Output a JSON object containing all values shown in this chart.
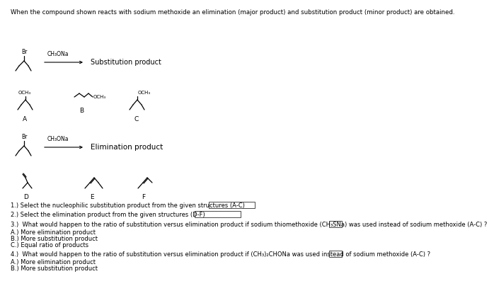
{
  "bg_color": "#ffffff",
  "title": "When the compound shown reacts with sodium methoxide an elimination (major product) and substitution product (minor product) are obtained.",
  "ch3ona": "CH₃ONa",
  "br": "Br",
  "och3": "OCH₃",
  "sub_label": "Substitution product",
  "elim_label": "Elimination product",
  "label_A": "A",
  "label_B": "B",
  "label_C": "C",
  "label_D": "D",
  "label_E": "E",
  "label_F": "F",
  "q1": "1.) Select the nucleophilic substitution product from the given structures (A-C)",
  "q2": "2.) Select the elimination product from the given structures (D-F)",
  "q3": "3.)  What would happen to the ratio of substitution versus elimination product if sodium thiomethoxide (CH₃SNa) was used instead of sodium methoxide (A-C) ?",
  "q3a": "A.) More elimination product",
  "q3b": "B.) More substitution product",
  "q3c": "C.) Equal ratio of products",
  "q4": "4.)  What would happen to the ratio of substitution versus elimination product if (CH₃)₂CHONa was used instead of sodium methoxide (A-C) ?",
  "q4a": "A.) More elimination product",
  "q4b": "B.) More substitution product"
}
